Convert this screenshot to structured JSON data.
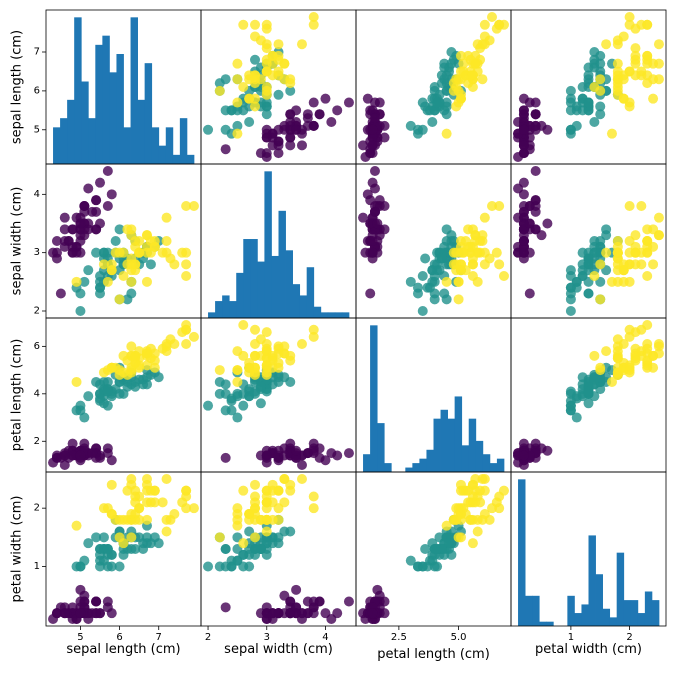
{
  "chart_data": {
    "type": "scatter-matrix",
    "features": [
      "sepal length (cm)",
      "sepal width (cm)",
      "petal length (cm)",
      "petal width (cm)"
    ],
    "ranges": [
      [
        4.3,
        7.9
      ],
      [
        2.0,
        4.4
      ],
      [
        1.0,
        6.9
      ],
      [
        0.1,
        2.5
      ]
    ],
    "ticks": [
      [
        5,
        6,
        7
      ],
      [
        2,
        3,
        4
      ],
      [
        2,
        4,
        6
      ],
      [
        1,
        2
      ]
    ],
    "tick_labels": [
      [
        "5",
        "6",
        "7"
      ],
      [
        "2",
        "3",
        "4"
      ],
      [
        "2",
        "4",
        "6"
      ],
      [
        "1",
        "2"
      ]
    ],
    "bottom_ticks": [
      [
        5,
        6,
        7
      ],
      [
        2,
        3,
        4
      ],
      [
        2.5,
        5.0
      ],
      [
        1,
        2
      ]
    ],
    "bottom_tick_labels": [
      [
        "5",
        "6",
        "7"
      ],
      [
        "2",
        "3",
        "4"
      ],
      [
        "2.5",
        "5.0"
      ],
      [
        "1",
        "2"
      ]
    ],
    "hist_bins": 20,
    "class_colors": [
      "#440154",
      "#21918c",
      "#fde725"
    ],
    "class_index": [
      0,
      0,
      0,
      0,
      0,
      0,
      0,
      0,
      0,
      0,
      0,
      0,
      0,
      0,
      0,
      0,
      0,
      0,
      0,
      0,
      0,
      0,
      0,
      0,
      0,
      0,
      0,
      0,
      0,
      0,
      0,
      0,
      0,
      0,
      0,
      0,
      0,
      0,
      0,
      0,
      0,
      0,
      0,
      0,
      0,
      0,
      0,
      0,
      0,
      0,
      1,
      1,
      1,
      1,
      1,
      1,
      1,
      1,
      1,
      1,
      1,
      1,
      1,
      1,
      1,
      1,
      1,
      1,
      1,
      1,
      1,
      1,
      1,
      1,
      1,
      1,
      1,
      1,
      1,
      1,
      1,
      1,
      1,
      1,
      1,
      1,
      1,
      1,
      1,
      1,
      1,
      1,
      1,
      1,
      1,
      1,
      1,
      1,
      1,
      1,
      2,
      2,
      2,
      2,
      2,
      2,
      2,
      2,
      2,
      2,
      2,
      2,
      2,
      2,
      2,
      2,
      2,
      2,
      2,
      2,
      2,
      2,
      2,
      2,
      2,
      2,
      2,
      2,
      2,
      2,
      2,
      2,
      2,
      2,
      2,
      2,
      2,
      2,
      2,
      2,
      2,
      2,
      2,
      2,
      2,
      2,
      2,
      2,
      2,
      2
    ],
    "samples": [
      [
        5.1,
        3.5,
        1.4,
        0.2
      ],
      [
        4.9,
        3.0,
        1.4,
        0.2
      ],
      [
        4.7,
        3.2,
        1.3,
        0.2
      ],
      [
        4.6,
        3.1,
        1.5,
        0.2
      ],
      [
        5.0,
        3.6,
        1.4,
        0.2
      ],
      [
        5.4,
        3.9,
        1.7,
        0.4
      ],
      [
        4.6,
        3.4,
        1.4,
        0.3
      ],
      [
        5.0,
        3.4,
        1.5,
        0.2
      ],
      [
        4.4,
        2.9,
        1.4,
        0.2
      ],
      [
        4.9,
        3.1,
        1.5,
        0.1
      ],
      [
        5.4,
        3.7,
        1.5,
        0.2
      ],
      [
        4.8,
        3.4,
        1.6,
        0.2
      ],
      [
        4.8,
        3.0,
        1.4,
        0.1
      ],
      [
        4.3,
        3.0,
        1.1,
        0.1
      ],
      [
        5.8,
        4.0,
        1.2,
        0.2
      ],
      [
        5.7,
        4.4,
        1.5,
        0.4
      ],
      [
        5.4,
        3.9,
        1.3,
        0.4
      ],
      [
        5.1,
        3.5,
        1.4,
        0.3
      ],
      [
        5.7,
        3.8,
        1.7,
        0.3
      ],
      [
        5.1,
        3.8,
        1.5,
        0.3
      ],
      [
        5.4,
        3.4,
        1.7,
        0.2
      ],
      [
        5.1,
        3.7,
        1.5,
        0.4
      ],
      [
        4.6,
        3.6,
        1.0,
        0.2
      ],
      [
        5.1,
        3.3,
        1.7,
        0.5
      ],
      [
        4.8,
        3.4,
        1.9,
        0.2
      ],
      [
        5.0,
        3.0,
        1.6,
        0.2
      ],
      [
        5.0,
        3.4,
        1.6,
        0.4
      ],
      [
        5.2,
        3.5,
        1.5,
        0.2
      ],
      [
        5.2,
        3.4,
        1.4,
        0.2
      ],
      [
        4.7,
        3.2,
        1.6,
        0.2
      ],
      [
        4.8,
        3.1,
        1.6,
        0.2
      ],
      [
        5.4,
        3.4,
        1.5,
        0.4
      ],
      [
        5.2,
        4.1,
        1.5,
        0.1
      ],
      [
        5.5,
        4.2,
        1.4,
        0.2
      ],
      [
        4.9,
        3.1,
        1.5,
        0.2
      ],
      [
        5.0,
        3.2,
        1.2,
        0.2
      ],
      [
        5.5,
        3.5,
        1.3,
        0.2
      ],
      [
        4.9,
        3.6,
        1.4,
        0.1
      ],
      [
        4.4,
        3.0,
        1.3,
        0.2
      ],
      [
        5.1,
        3.4,
        1.5,
        0.2
      ],
      [
        5.0,
        3.5,
        1.3,
        0.3
      ],
      [
        4.5,
        2.3,
        1.3,
        0.3
      ],
      [
        4.4,
        3.2,
        1.3,
        0.2
      ],
      [
        5.0,
        3.5,
        1.6,
        0.6
      ],
      [
        5.1,
        3.8,
        1.9,
        0.4
      ],
      [
        4.8,
        3.0,
        1.4,
        0.3
      ],
      [
        5.1,
        3.8,
        1.6,
        0.2
      ],
      [
        4.6,
        3.2,
        1.4,
        0.2
      ],
      [
        5.3,
        3.7,
        1.5,
        0.2
      ],
      [
        5.0,
        3.3,
        1.4,
        0.2
      ],
      [
        7.0,
        3.2,
        4.7,
        1.4
      ],
      [
        6.4,
        3.2,
        4.5,
        1.5
      ],
      [
        6.9,
        3.1,
        4.9,
        1.5
      ],
      [
        5.5,
        2.3,
        4.0,
        1.3
      ],
      [
        6.5,
        2.8,
        4.6,
        1.5
      ],
      [
        5.7,
        2.8,
        4.5,
        1.3
      ],
      [
        6.3,
        3.3,
        4.7,
        1.6
      ],
      [
        4.9,
        2.4,
        3.3,
        1.0
      ],
      [
        6.6,
        2.9,
        4.6,
        1.3
      ],
      [
        5.2,
        2.7,
        3.9,
        1.4
      ],
      [
        5.0,
        2.0,
        3.5,
        1.0
      ],
      [
        5.9,
        3.0,
        4.2,
        1.5
      ],
      [
        6.0,
        2.2,
        4.0,
        1.0
      ],
      [
        6.1,
        2.9,
        4.7,
        1.4
      ],
      [
        5.6,
        2.9,
        3.6,
        1.3
      ],
      [
        6.7,
        3.1,
        4.4,
        1.4
      ],
      [
        5.6,
        3.0,
        4.5,
        1.5
      ],
      [
        5.8,
        2.7,
        4.1,
        1.0
      ],
      [
        6.2,
        2.2,
        4.5,
        1.5
      ],
      [
        5.6,
        2.5,
        3.9,
        1.1
      ],
      [
        5.9,
        3.2,
        4.8,
        1.8
      ],
      [
        6.1,
        2.8,
        4.0,
        1.3
      ],
      [
        6.3,
        2.5,
        4.9,
        1.5
      ],
      [
        6.1,
        2.8,
        4.7,
        1.2
      ],
      [
        6.4,
        2.9,
        4.3,
        1.3
      ],
      [
        6.6,
        3.0,
        4.4,
        1.4
      ],
      [
        6.8,
        2.8,
        4.8,
        1.4
      ],
      [
        6.7,
        3.0,
        5.0,
        1.7
      ],
      [
        6.0,
        2.9,
        4.5,
        1.5
      ],
      [
        5.7,
        2.6,
        3.5,
        1.0
      ],
      [
        5.5,
        2.4,
        3.8,
        1.1
      ],
      [
        5.5,
        2.4,
        3.7,
        1.0
      ],
      [
        5.8,
        2.7,
        3.9,
        1.2
      ],
      [
        6.0,
        2.7,
        5.1,
        1.6
      ],
      [
        5.4,
        3.0,
        4.5,
        1.5
      ],
      [
        6.0,
        3.4,
        4.5,
        1.6
      ],
      [
        6.7,
        3.1,
        4.7,
        1.5
      ],
      [
        6.3,
        2.3,
        4.4,
        1.3
      ],
      [
        5.6,
        3.0,
        4.1,
        1.3
      ],
      [
        5.5,
        2.5,
        4.0,
        1.3
      ],
      [
        5.5,
        2.6,
        4.4,
        1.2
      ],
      [
        6.1,
        3.0,
        4.6,
        1.4
      ],
      [
        5.8,
        2.6,
        4.0,
        1.2
      ],
      [
        5.0,
        2.3,
        3.3,
        1.0
      ],
      [
        5.6,
        2.7,
        4.2,
        1.3
      ],
      [
        5.7,
        3.0,
        4.2,
        1.2
      ],
      [
        5.7,
        2.9,
        4.2,
        1.3
      ],
      [
        6.2,
        2.9,
        4.3,
        1.3
      ],
      [
        5.1,
        2.5,
        3.0,
        1.1
      ],
      [
        5.7,
        2.8,
        4.1,
        1.3
      ],
      [
        6.3,
        3.3,
        6.0,
        2.5
      ],
      [
        5.8,
        2.7,
        5.1,
        1.9
      ],
      [
        7.1,
        3.0,
        5.9,
        2.1
      ],
      [
        6.3,
        2.9,
        5.6,
        1.8
      ],
      [
        6.5,
        3.0,
        5.8,
        2.2
      ],
      [
        7.6,
        3.0,
        6.6,
        2.1
      ],
      [
        4.9,
        2.5,
        4.5,
        1.7
      ],
      [
        7.3,
        2.9,
        6.3,
        1.8
      ],
      [
        6.7,
        2.5,
        5.8,
        1.8
      ],
      [
        7.2,
        3.6,
        6.1,
        2.5
      ],
      [
        6.5,
        3.2,
        5.1,
        2.0
      ],
      [
        6.4,
        2.7,
        5.3,
        1.9
      ],
      [
        6.8,
        3.0,
        5.5,
        2.1
      ],
      [
        5.7,
        2.5,
        5.0,
        2.0
      ],
      [
        5.8,
        2.8,
        5.1,
        2.4
      ],
      [
        6.4,
        3.2,
        5.3,
        2.3
      ],
      [
        6.5,
        3.0,
        5.5,
        1.8
      ],
      [
        7.7,
        3.8,
        6.7,
        2.2
      ],
      [
        7.7,
        2.6,
        6.9,
        2.3
      ],
      [
        6.0,
        2.2,
        5.0,
        1.5
      ],
      [
        6.9,
        3.2,
        5.7,
        2.3
      ],
      [
        5.6,
        2.8,
        4.9,
        2.0
      ],
      [
        7.7,
        2.8,
        6.7,
        2.0
      ],
      [
        6.3,
        2.7,
        4.9,
        1.8
      ],
      [
        6.7,
        3.3,
        5.7,
        2.1
      ],
      [
        7.2,
        3.2,
        6.0,
        1.8
      ],
      [
        6.2,
        2.8,
        4.8,
        1.8
      ],
      [
        6.1,
        3.0,
        4.9,
        1.8
      ],
      [
        6.4,
        2.8,
        5.6,
        2.1
      ],
      [
        7.2,
        3.0,
        5.8,
        1.6
      ],
      [
        7.4,
        2.8,
        6.1,
        1.9
      ],
      [
        7.9,
        3.8,
        6.4,
        2.0
      ],
      [
        6.4,
        2.8,
        5.6,
        2.2
      ],
      [
        6.3,
        2.8,
        5.1,
        1.5
      ],
      [
        6.1,
        2.6,
        5.6,
        1.4
      ],
      [
        7.7,
        3.0,
        6.1,
        2.3
      ],
      [
        6.3,
        3.4,
        5.6,
        2.4
      ],
      [
        6.4,
        3.1,
        5.5,
        1.8
      ],
      [
        6.0,
        3.0,
        4.8,
        1.8
      ],
      [
        6.9,
        3.1,
        5.4,
        2.1
      ],
      [
        6.7,
        3.1,
        5.6,
        2.4
      ],
      [
        6.9,
        3.1,
        5.1,
        2.3
      ],
      [
        5.8,
        2.7,
        5.1,
        1.9
      ],
      [
        6.8,
        3.2,
        5.9,
        2.3
      ],
      [
        6.7,
        3.3,
        5.7,
        2.5
      ],
      [
        6.7,
        3.0,
        5.2,
        2.3
      ],
      [
        6.3,
        2.5,
        5.0,
        1.9
      ],
      [
        6.5,
        3.0,
        5.2,
        2.0
      ],
      [
        6.2,
        3.4,
        5.4,
        2.3
      ],
      [
        5.9,
        3.0,
        5.1,
        1.8
      ]
    ]
  }
}
